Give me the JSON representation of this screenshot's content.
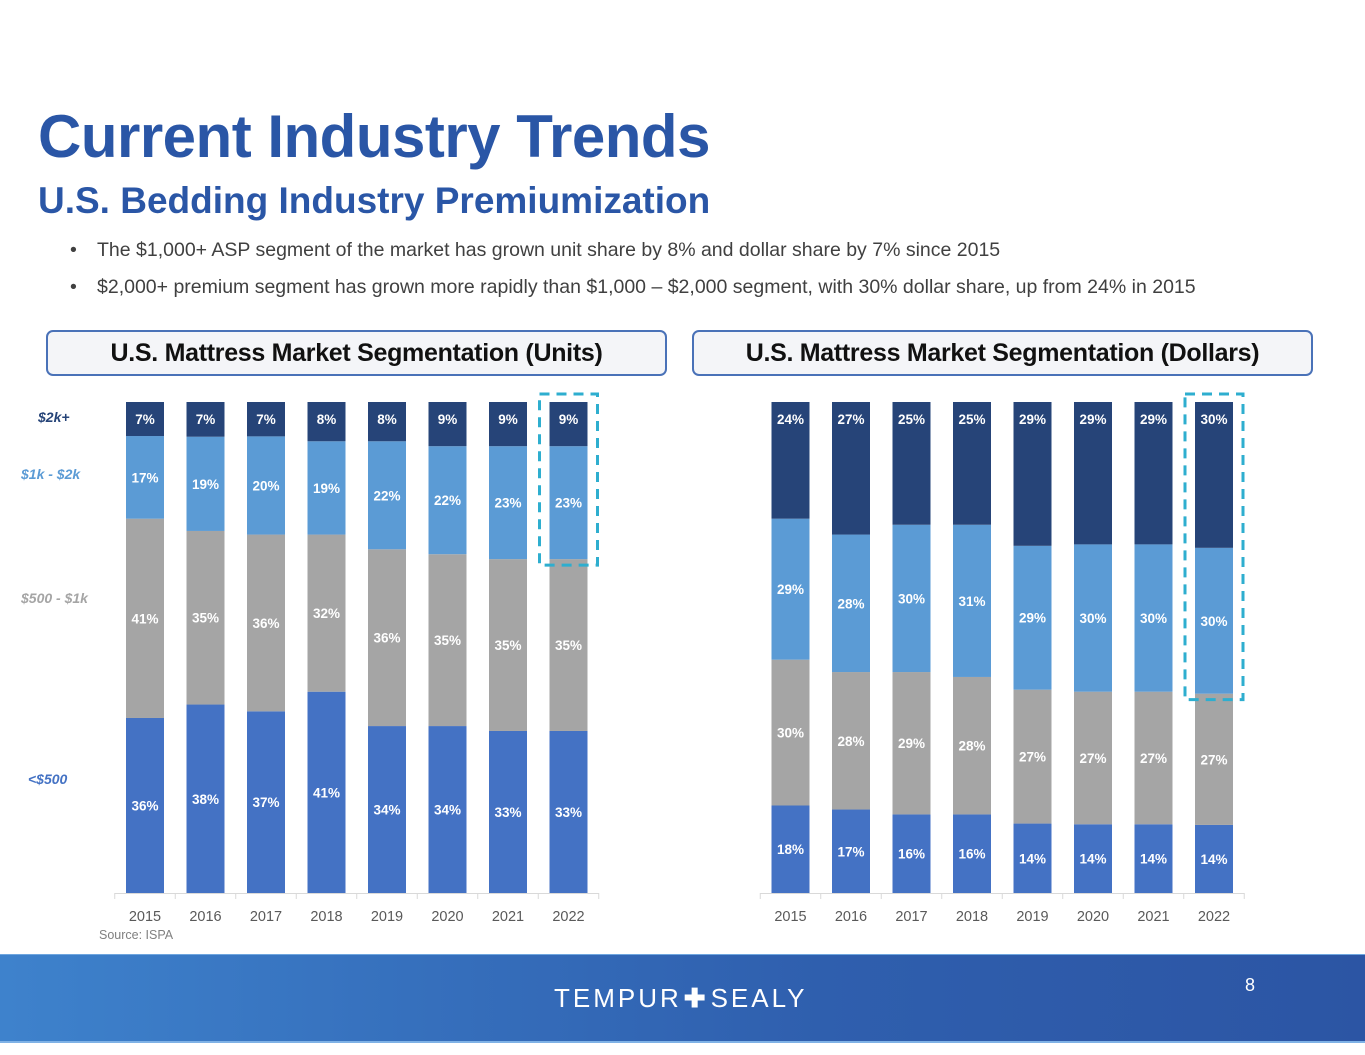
{
  "slide": {
    "title": "Current Industry Trends",
    "subtitle": "U.S. Bedding Industry Premiumization",
    "bullets": [
      "The $1,000+ ASP segment of the market has grown unit share by 8% and dollar share by 7% since 2015",
      "$2,000+ premium segment has grown more rapidly than $1,000 – $2,000 segment, with 30% dollar share, up from 24% in 2015"
    ],
    "bullet_glyph": "•",
    "source": "Source: ISPA",
    "page_number": "8",
    "logo": {
      "left": "TEMPUR",
      "plus": "✚",
      "right": "SEALY"
    }
  },
  "colors": {
    "title": "#2a56a6",
    "seg_lt500": "#4472c4",
    "seg_500_1k": "#a5a5a5",
    "seg_1k_2k": "#5b9bd5",
    "seg_2k_plus": "#264478",
    "highlight": "#2eaecf",
    "footer": "#2f5fae"
  },
  "chart_data": [
    {
      "type": "bar",
      "stacked": true,
      "title": "U.S. Mattress Market Segmentation (Units)",
      "xlabel": "",
      "ylabel": "",
      "ylim": [
        0,
        100
      ],
      "grid": false,
      "legend_position": "left",
      "categories": [
        "2015",
        "2016",
        "2017",
        "2018",
        "2019",
        "2020",
        "2021",
        "2022"
      ],
      "series": [
        {
          "name": "<$500",
          "values": [
            36,
            38,
            37,
            41,
            34,
            34,
            33,
            33
          ]
        },
        {
          "name": "$500 - $1k",
          "values": [
            41,
            35,
            36,
            32,
            36,
            35,
            35,
            35
          ]
        },
        {
          "name": "$1k - $2k",
          "values": [
            17,
            19,
            20,
            19,
            22,
            22,
            23,
            23
          ]
        },
        {
          "name": "$2k+",
          "values": [
            7,
            7,
            7,
            8,
            8,
            9,
            9,
            9
          ]
        }
      ],
      "value_suffix": "%",
      "annotations": [
        {
          "type": "dashed-box",
          "category": "2022",
          "series": [
            "$1k - $2k",
            "$2k+"
          ]
        }
      ]
    },
    {
      "type": "bar",
      "stacked": true,
      "title": "U.S. Mattress Market Segmentation (Dollars)",
      "xlabel": "",
      "ylabel": "",
      "ylim": [
        0,
        100
      ],
      "grid": false,
      "legend_position": "left",
      "categories": [
        "2015",
        "2016",
        "2017",
        "2018",
        "2019",
        "2020",
        "2021",
        "2022"
      ],
      "series": [
        {
          "name": "<$500",
          "values": [
            18,
            17,
            16,
            16,
            14,
            14,
            14,
            14
          ]
        },
        {
          "name": "$500 - $1k",
          "values": [
            30,
            28,
            29,
            28,
            27,
            27,
            27,
            27
          ]
        },
        {
          "name": "$1k - $2k",
          "values": [
            29,
            28,
            30,
            31,
            29,
            30,
            30,
            30
          ]
        },
        {
          "name": "$2k+",
          "values": [
            24,
            27,
            25,
            25,
            29,
            29,
            29,
            30
          ]
        }
      ],
      "value_suffix": "%",
      "annotations": [
        {
          "type": "dashed-box",
          "category": "2022",
          "series": [
            "$1k - $2k",
            "$2k+"
          ]
        }
      ]
    }
  ]
}
